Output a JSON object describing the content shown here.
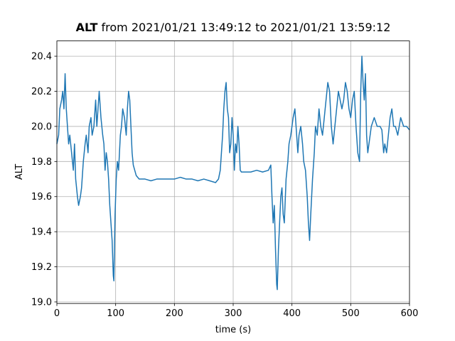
{
  "chart_data": {
    "type": "line",
    "title": [
      "ALT",
      "from 2021/01/21 13:49:12 to 2021/01/21 13:59:12"
    ],
    "xlabel": "time (s)",
    "ylabel": "ALT",
    "xlim": [
      0,
      600
    ],
    "xticks": [
      0,
      100,
      200,
      300,
      400,
      500,
      600
    ],
    "ylim": [
      18.991,
      20.487
    ],
    "yticks": [
      {
        "value": 19,
        "label": "19.0"
      },
      19.2,
      19.4,
      19.6,
      19.8,
      {
        "value": 20,
        "label": "20.0"
      },
      20.2,
      20.4
    ],
    "grid": true,
    "series": [
      {
        "name": "ALT",
        "color": "#1f77b4",
        "x": [
          0,
          3,
          5,
          8,
          10,
          12,
          14,
          16,
          18,
          20,
          22,
          25,
          28,
          30,
          32,
          35,
          37,
          40,
          42,
          45,
          48,
          50,
          53,
          55,
          58,
          60,
          63,
          66,
          68,
          70,
          72,
          75,
          78,
          80,
          82,
          84,
          86,
          88,
          90,
          92,
          94,
          96,
          97,
          99,
          101,
          103,
          105,
          108,
          110,
          112,
          115,
          118,
          120,
          122,
          124,
          126,
          128,
          130,
          135,
          140,
          150,
          160,
          170,
          180,
          190,
          200,
          210,
          220,
          230,
          240,
          250,
          260,
          270,
          275,
          278,
          280,
          282,
          284,
          286,
          288,
          290,
          292,
          294,
          296,
          298,
          300,
          302,
          304,
          306,
          308,
          310,
          312,
          314,
          320,
          330,
          340,
          350,
          360,
          364,
          366,
          368,
          370,
          372,
          374,
          375,
          377,
          379,
          381,
          383,
          385,
          387,
          390,
          393,
          395,
          398,
          400,
          402,
          405,
          408,
          410,
          412,
          415,
          418,
          420,
          423,
          426,
          428,
          430,
          432,
          435,
          438,
          440,
          443,
          446,
          449,
          452,
          455,
          458,
          461,
          464,
          467,
          470,
          473,
          476,
          479,
          482,
          485,
          488,
          491,
          494,
          497,
          500,
          503,
          506,
          509,
          512,
          515,
          517,
          519,
          521,
          523,
          525,
          527,
          529,
          531,
          535,
          540,
          545,
          550,
          553,
          556,
          558,
          561,
          564,
          567,
          570,
          573,
          576,
          580,
          585,
          590,
          595,
          600
        ],
        "values": [
          19.9,
          19.95,
          20.1,
          20.15,
          20.2,
          20.1,
          20.3,
          20.1,
          20.0,
          19.9,
          19.95,
          19.85,
          19.75,
          19.9,
          19.7,
          19.6,
          19.55,
          19.6,
          19.65,
          19.8,
          19.9,
          19.95,
          19.85,
          20.0,
          20.05,
          19.95,
          20.0,
          20.15,
          20.0,
          20.1,
          20.2,
          20.05,
          19.95,
          19.9,
          19.75,
          19.85,
          19.8,
          19.7,
          19.55,
          19.45,
          19.35,
          19.15,
          19.12,
          19.5,
          19.7,
          19.8,
          19.75,
          19.95,
          20.0,
          20.1,
          20.05,
          19.95,
          20.1,
          20.2,
          20.15,
          20.0,
          19.85,
          19.78,
          19.72,
          19.7,
          19.7,
          19.69,
          19.7,
          19.7,
          19.7,
          19.7,
          19.71,
          19.7,
          19.7,
          19.69,
          19.7,
          19.69,
          19.68,
          19.7,
          19.75,
          19.85,
          19.95,
          20.1,
          20.2,
          20.25,
          20.1,
          20.05,
          19.85,
          19.9,
          20.05,
          19.95,
          19.75,
          19.9,
          19.85,
          20.0,
          19.9,
          19.75,
          19.74,
          19.74,
          19.74,
          19.75,
          19.74,
          19.75,
          19.78,
          19.6,
          19.45,
          19.55,
          19.3,
          19.1,
          19.07,
          19.3,
          19.45,
          19.6,
          19.65,
          19.5,
          19.45,
          19.7,
          19.8,
          19.9,
          19.95,
          20.0,
          20.05,
          20.1,
          19.95,
          19.85,
          19.95,
          20.0,
          19.9,
          19.8,
          19.75,
          19.6,
          19.45,
          19.35,
          19.5,
          19.7,
          19.85,
          20.0,
          19.95,
          20.1,
          20.0,
          19.95,
          20.05,
          20.15,
          20.25,
          20.2,
          20.0,
          19.9,
          20.0,
          20.1,
          20.2,
          20.15,
          20.1,
          20.15,
          20.25,
          20.2,
          20.1,
          20.05,
          20.15,
          20.2,
          20.0,
          19.85,
          19.8,
          20.2,
          20.4,
          20.25,
          20.15,
          20.3,
          19.95,
          19.85,
          19.9,
          20.0,
          20.05,
          20.0,
          20.0,
          19.98,
          19.85,
          19.9,
          19.85,
          19.95,
          20.05,
          20.1,
          20.0,
          20.0,
          19.95,
          20.05,
          20.0,
          20.0,
          19.98
        ]
      }
    ]
  }
}
